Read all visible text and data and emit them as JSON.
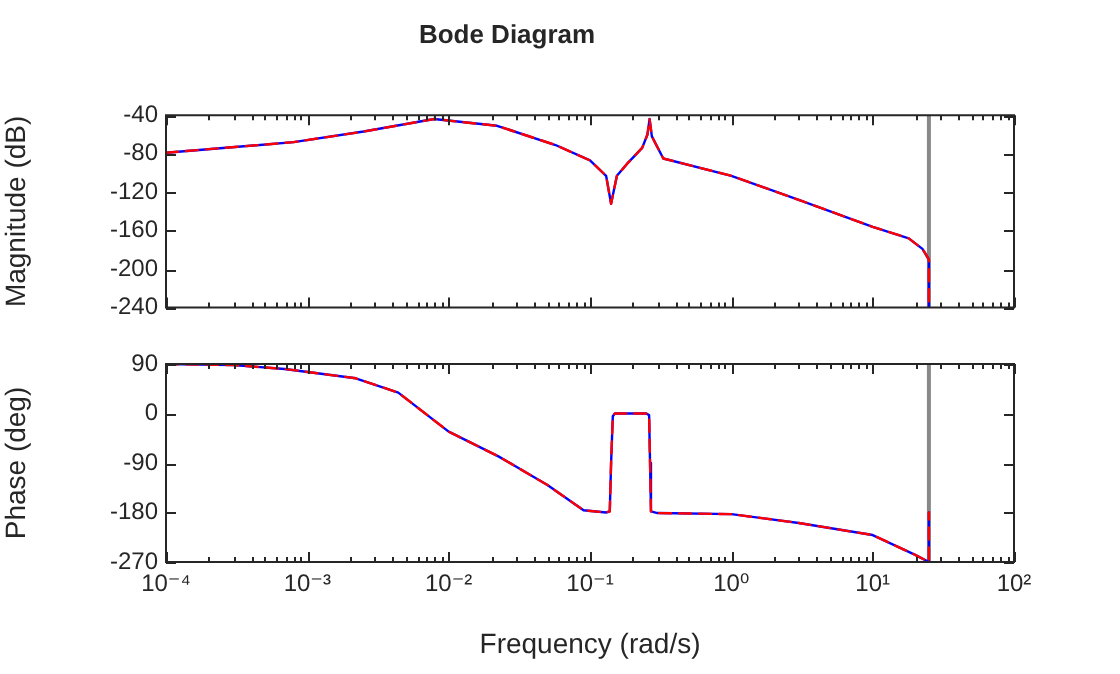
{
  "chart_data": [
    {
      "type": "line",
      "title": "Bode Diagram",
      "ylabel": "Magnitude (dB)",
      "grid": false,
      "marker": "none",
      "tick_labels": "y",
      "x": [
        0.0001,
        0.0008,
        0.0025,
        0.0079,
        0.022,
        0.057,
        0.1,
        0.13,
        0.141,
        0.155,
        0.187,
        0.234,
        0.255,
        0.264,
        0.274,
        0.33,
        1.0,
        3.0,
        10,
        18,
        22.5,
        25,
        25
      ],
      "xlim": [
        0.0001,
        100
      ],
      "ylim": [
        -240,
        -40
      ],
      "yticks": [
        -240,
        -200,
        -160,
        -120,
        -80,
        -40
      ],
      "log": "x",
      "xticks": [
        {
          "value": 0.0001,
          "label": null
        },
        {
          "value": 0.0002,
          "label": null
        },
        {
          "value": 0.0003,
          "label": null
        },
        {
          "value": 0.0004,
          "label": null
        },
        {
          "value": 0.0005,
          "label": null
        },
        {
          "value": 0.0006,
          "label": null
        },
        {
          "value": 0.0007,
          "label": null
        },
        {
          "value": 0.0008,
          "label": null
        },
        {
          "value": 0.0009,
          "label": null
        },
        {
          "value": 0.001,
          "label": null
        },
        {
          "value": 0.002,
          "label": null
        },
        {
          "value": 0.003,
          "label": null
        },
        {
          "value": 0.004,
          "label": null
        },
        {
          "value": 0.005,
          "label": null
        },
        {
          "value": 0.006,
          "label": null
        },
        {
          "value": 0.007,
          "label": null
        },
        {
          "value": 0.008,
          "label": null
        },
        {
          "value": 0.009,
          "label": null
        },
        {
          "value": 0.01,
          "label": null
        },
        {
          "value": 0.02,
          "label": null
        },
        {
          "value": 0.03,
          "label": null
        },
        {
          "value": 0.04,
          "label": null
        },
        {
          "value": 0.05,
          "label": null
        },
        {
          "value": 0.06,
          "label": null
        },
        {
          "value": 0.07,
          "label": null
        },
        {
          "value": 0.08,
          "label": null
        },
        {
          "value": 0.09,
          "label": null
        },
        {
          "value": 0.1,
          "label": null
        },
        {
          "value": 0.2,
          "label": null
        },
        {
          "value": 0.3,
          "label": null
        },
        {
          "value": 0.4,
          "label": null
        },
        {
          "value": 0.5,
          "label": null
        },
        {
          "value": 0.6,
          "label": null
        },
        {
          "value": 0.7,
          "label": null
        },
        {
          "value": 0.8,
          "label": null
        },
        {
          "value": 0.9,
          "label": null
        },
        {
          "value": 1,
          "label": null
        },
        {
          "value": 2,
          "label": null
        },
        {
          "value": 3,
          "label": null
        },
        {
          "value": 4,
          "label": null
        },
        {
          "value": 5,
          "label": null
        },
        {
          "value": 6,
          "label": null
        },
        {
          "value": 7,
          "label": null
        },
        {
          "value": 8,
          "label": null
        },
        {
          "value": 9,
          "label": null
        },
        {
          "value": 10,
          "label": null
        },
        {
          "value": 20,
          "label": null
        },
        {
          "value": 30,
          "label": null
        },
        {
          "value": 40,
          "label": null
        },
        {
          "value": 50,
          "label": null
        },
        {
          "value": 60,
          "label": null
        },
        {
          "value": 70,
          "label": null
        },
        {
          "value": 80,
          "label": null
        },
        {
          "value": 90,
          "label": null
        },
        {
          "value": 100,
          "label": null
        }
      ],
      "ref_lines": [
        {
          "axis": "x",
          "value": 25,
          "color": "#888888"
        }
      ],
      "series": [
        {
          "color": "#0000ff",
          "line_style": "solid",
          "values": [
            -79,
            -68,
            -57,
            -44,
            -51,
            -71,
            -87,
            -103,
            -132,
            -103,
            -89,
            -74,
            -60,
            -44,
            -62,
            -85,
            -103,
            -128,
            -156,
            -168,
            -179,
            -190,
            -240
          ]
        },
        {
          "color": "#ff0000",
          "line_style": "dashed",
          "values": [
            -79,
            -68,
            -57,
            -44,
            -51,
            -71,
            -87,
            -103,
            -132,
            -103,
            -89,
            -74,
            -60,
            -44,
            -62,
            -85,
            -103,
            -128,
            -156,
            -168,
            -179,
            -190,
            -240
          ]
        }
      ]
    },
    {
      "type": "line",
      "xlabel": "Frequency (rad/s)",
      "ylabel": "Phase (deg)",
      "grid": false,
      "marker": "none",
      "x": [
        0.0001,
        0.0003,
        0.00069,
        0.0022,
        0.0044,
        0.01,
        0.0225,
        0.05,
        0.09,
        0.13,
        0.138,
        0.141,
        0.145,
        0.15,
        0.25,
        0.262,
        0.266,
        0.27,
        0.3,
        1.0,
        3.0,
        10,
        20,
        25,
        25
      ],
      "xlim": [
        0.0001,
        100
      ],
      "ylim": [
        -270,
        90
      ],
      "yticks": [
        -270,
        -180,
        -90,
        0,
        90
      ],
      "log": "x",
      "xticks": [
        {
          "value": 0.0001,
          "label": "10⁻⁴"
        },
        {
          "value": 0.0002,
          "label": null
        },
        {
          "value": 0.0003,
          "label": null
        },
        {
          "value": 0.0004,
          "label": null
        },
        {
          "value": 0.0005,
          "label": null
        },
        {
          "value": 0.0006,
          "label": null
        },
        {
          "value": 0.0007,
          "label": null
        },
        {
          "value": 0.0008,
          "label": null
        },
        {
          "value": 0.0009,
          "label": null
        },
        {
          "value": 0.001,
          "label": "10⁻³"
        },
        {
          "value": 0.002,
          "label": null
        },
        {
          "value": 0.003,
          "label": null
        },
        {
          "value": 0.004,
          "label": null
        },
        {
          "value": 0.005,
          "label": null
        },
        {
          "value": 0.006,
          "label": null
        },
        {
          "value": 0.007,
          "label": null
        },
        {
          "value": 0.008,
          "label": null
        },
        {
          "value": 0.009,
          "label": null
        },
        {
          "value": 0.01,
          "label": "10⁻²"
        },
        {
          "value": 0.02,
          "label": null
        },
        {
          "value": 0.03,
          "label": null
        },
        {
          "value": 0.04,
          "label": null
        },
        {
          "value": 0.05,
          "label": null
        },
        {
          "value": 0.06,
          "label": null
        },
        {
          "value": 0.07,
          "label": null
        },
        {
          "value": 0.08,
          "label": null
        },
        {
          "value": 0.09,
          "label": null
        },
        {
          "value": 0.1,
          "label": "10⁻¹"
        },
        {
          "value": 0.2,
          "label": null
        },
        {
          "value": 0.3,
          "label": null
        },
        {
          "value": 0.4,
          "label": null
        },
        {
          "value": 0.5,
          "label": null
        },
        {
          "value": 0.6,
          "label": null
        },
        {
          "value": 0.7,
          "label": null
        },
        {
          "value": 0.8,
          "label": null
        },
        {
          "value": 0.9,
          "label": null
        },
        {
          "value": 1,
          "label": "10⁰"
        },
        {
          "value": 2,
          "label": null
        },
        {
          "value": 3,
          "label": null
        },
        {
          "value": 4,
          "label": null
        },
        {
          "value": 5,
          "label": null
        },
        {
          "value": 6,
          "label": null
        },
        {
          "value": 7,
          "label": null
        },
        {
          "value": 8,
          "label": null
        },
        {
          "value": 9,
          "label": null
        },
        {
          "value": 10,
          "label": "10¹"
        },
        {
          "value": 20,
          "label": null
        },
        {
          "value": 30,
          "label": null
        },
        {
          "value": 40,
          "label": null
        },
        {
          "value": 50,
          "label": null
        },
        {
          "value": 60,
          "label": null
        },
        {
          "value": 70,
          "label": null
        },
        {
          "value": 80,
          "label": null
        },
        {
          "value": 90,
          "label": null
        },
        {
          "value": 100,
          "label": "10²"
        }
      ],
      "ref_lines": [
        {
          "axis": "x",
          "value": 25,
          "color": "#888888"
        }
      ],
      "series": [
        {
          "color": "#0000ff",
          "line_style": "solid",
          "values": [
            90,
            88,
            81,
            64,
            38,
            -33,
            -78,
            -130,
            -176,
            -180,
            -178,
            -90,
            -5,
            0,
            0,
            -3,
            -90,
            -178,
            -181,
            -183,
            -199,
            -221,
            -257,
            -270,
            -180
          ]
        },
        {
          "color": "#ff0000",
          "line_style": "dashed",
          "values": [
            90,
            88,
            81,
            64,
            38,
            -33,
            -78,
            -130,
            -176,
            -180,
            -178,
            -90,
            -5,
            0,
            0,
            -3,
            -90,
            -178,
            -181,
            -183,
            -199,
            -221,
            -257,
            -270,
            -180
          ]
        }
      ]
    }
  ]
}
